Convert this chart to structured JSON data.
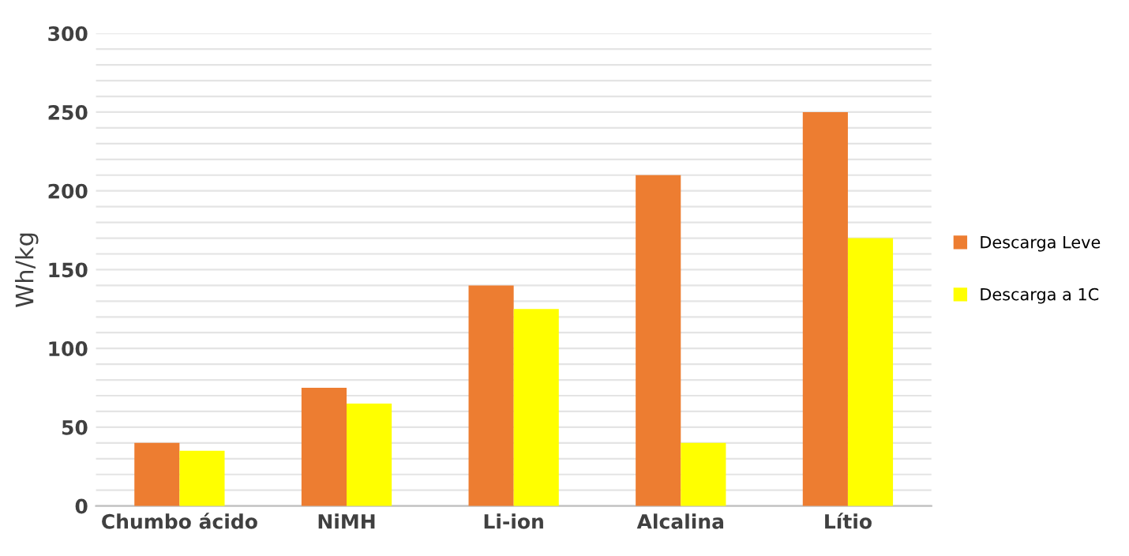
{
  "chart_data": {
    "type": "bar",
    "ylabel": "Wh/kg",
    "categories": [
      "Chumbo ácido",
      "NiMH",
      "Li-ion",
      "Alcalina",
      "Lítio"
    ],
    "series": [
      {
        "name": "Descarga Leve",
        "color": "#ed7d31",
        "values": [
          40,
          75,
          140,
          210,
          250
        ]
      },
      {
        "name": "Descarga a 1C",
        "color": "#ffff00",
        "values": [
          35,
          65,
          125,
          40,
          170
        ]
      }
    ],
    "ylim": [
      0,
      300
    ],
    "yticks": [
      0,
      {
        "value": 10,
        "label": null
      },
      {
        "value": 20,
        "label": null
      },
      {
        "value": 30,
        "label": null
      },
      {
        "value": 40,
        "label": null
      },
      50,
      {
        "value": 60,
        "label": null
      },
      {
        "value": 70,
        "label": null
      },
      {
        "value": 80,
        "label": null
      },
      {
        "value": 90,
        "label": null
      },
      100,
      {
        "value": 110,
        "label": null
      },
      {
        "value": 120,
        "label": null
      },
      {
        "value": 130,
        "label": null
      },
      {
        "value": 140,
        "label": null
      },
      150,
      {
        "value": 160,
        "label": null
      },
      {
        "value": 170,
        "label": null
      },
      {
        "value": 180,
        "label": null
      },
      {
        "value": 190,
        "label": null
      },
      200,
      {
        "value": 210,
        "label": null
      },
      {
        "value": 220,
        "label": null
      },
      {
        "value": 230,
        "label": null
      },
      {
        "value": 240,
        "label": null
      },
      250,
      {
        "value": 260,
        "label": null
      },
      {
        "value": 270,
        "label": null
      },
      {
        "value": 280,
        "label": null
      },
      {
        "value": 290,
        "label": null
      },
      300
    ],
    "grid": "y",
    "legend": "right"
  }
}
